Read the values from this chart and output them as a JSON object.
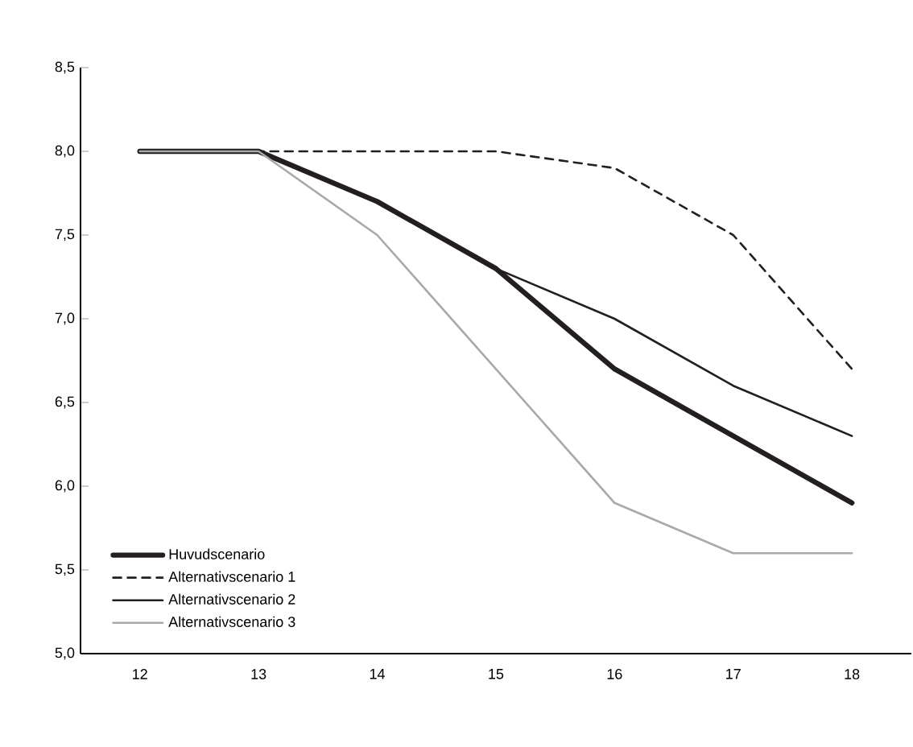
{
  "chart_data": {
    "type": "line",
    "categories": [
      "12",
      "13",
      "14",
      "15",
      "16",
      "17",
      "18"
    ],
    "series": [
      {
        "name": "Huvudscenario",
        "color": "#231f20",
        "values": [
          8.0,
          8.0,
          7.7,
          7.3,
          6.7,
          6.3,
          5.9
        ]
      },
      {
        "name": "Alternativscenario 1",
        "color": "#231f20",
        "line_style": "dashed",
        "values": [
          8.0,
          8.0,
          8.0,
          8.0,
          7.9,
          7.5,
          6.7
        ]
      },
      {
        "name": "Alternativscenario 2",
        "color": "#231f20",
        "values": [
          8.0,
          8.0,
          7.7,
          7.3,
          7.0,
          6.6,
          6.3
        ]
      },
      {
        "name": "Alternativscenario 3",
        "color": "#a7a9ac",
        "values": [
          8.0,
          8.0,
          7.5,
          6.7,
          5.9,
          5.6,
          5.6
        ]
      }
    ],
    "ylim": [
      5.0,
      8.5
    ],
    "yticks": [
      {
        "value": 5.0,
        "label": "5,0"
      },
      {
        "value": 5.5,
        "label": "5,5"
      },
      {
        "value": 6.0,
        "label": "6,0"
      },
      {
        "value": 6.5,
        "label": "6,5"
      },
      {
        "value": 7.0,
        "label": "7,0"
      },
      {
        "value": 7.5,
        "label": "7,5"
      },
      {
        "value": 8.0,
        "label": "8,0"
      },
      {
        "value": 8.5,
        "label": "8,5"
      }
    ],
    "legend": "bottom left",
    "line_style": "solid",
    "grid": false
  }
}
